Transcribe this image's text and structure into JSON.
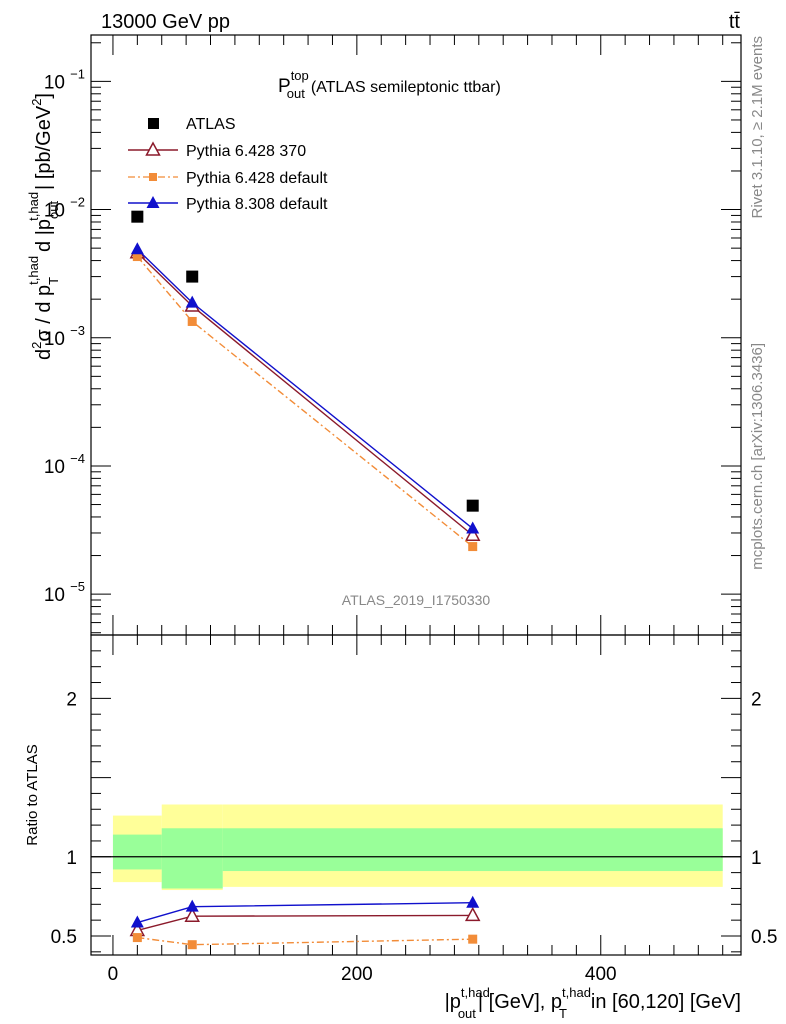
{
  "header": {
    "left": "13000 GeV pp",
    "right": "tt̄"
  },
  "side_texts": {
    "rivet": "Rivet 3.1.10, ≥ 2.1M events",
    "mcplots": "mcplots.cern.ch [arXiv:1306.3436]"
  },
  "watermark": "ATLAS_2019_I1750330",
  "main_title": {
    "base": "P",
    "sup": "top",
    "sub": "out",
    "rest": "(ATLAS semileptonic ttbar)"
  },
  "y_label_top": {
    "d2": "d",
    "two": "2",
    "sigma": "σ / d p",
    "T_sub": "T",
    "thad_sup": "t,had",
    "mid": "d |p",
    "out_sub": "out",
    "thad_sup2": "t,had",
    "unit": "| [pb/GeV",
    "unit_sup": "2",
    "unit_end": "]"
  },
  "y_label_bottom": "Ratio to ATLAS",
  "x_label": {
    "p1": "|p",
    "p1_sup": "t,had",
    "p1_sub": "out",
    "p2": "| [GeV], p",
    "p2_sup": "t,had",
    "p2_sub": "T",
    "p3": "in [60,120] [GeV]"
  },
  "top_ticks": {
    "labels": [
      {
        "value": 0.1,
        "base": "10",
        "exp": "−1"
      },
      {
        "value": 0.01,
        "base": "10",
        "exp": "−2"
      },
      {
        "value": 0.001,
        "base": "10",
        "exp": "−3"
      },
      {
        "value": 0.0001,
        "base": "10",
        "exp": "−4"
      },
      {
        "value": 1e-05,
        "base": "10",
        "exp": "−5"
      }
    ]
  },
  "bottom_ticks": {
    "labels": [
      {
        "value": 2,
        "text": "2"
      },
      {
        "value": 1,
        "text": "1"
      },
      {
        "value": 0.5,
        "text": "0.5"
      }
    ]
  },
  "x_ticks": {
    "labels": [
      {
        "value": 0,
        "text": "0"
      },
      {
        "value": 200,
        "text": "200"
      },
      {
        "value": 400,
        "text": "400"
      }
    ]
  },
  "chart_data": [
    {
      "type": "line",
      "panel": "main",
      "x_scale": "linear",
      "y_scale": "log",
      "xlim": [
        -18,
        515
      ],
      "ylim": [
        4.8e-06,
        0.23
      ],
      "legend_position": "top-left",
      "series": [
        {
          "name": "ATLAS",
          "style": "marker-only",
          "marker": "filled-square",
          "color": "#000000",
          "x": [
            20,
            65,
            295
          ],
          "y": [
            0.0088,
            0.003,
            4.9e-05
          ]
        },
        {
          "name": "Pythia 6.428 370",
          "style": "solid",
          "marker": "open-triangle",
          "color": "#8b1a2b",
          "x": [
            20,
            65,
            295
          ],
          "y": [
            0.0046,
            0.00177,
            2.88e-05
          ]
        },
        {
          "name": "Pythia 6.428 default",
          "style": "dash-dot",
          "marker": "filled-small-square",
          "color": "#f28c38",
          "x": [
            20,
            65,
            295
          ],
          "y": [
            0.0043,
            0.00134,
            2.35e-05
          ]
        },
        {
          "name": "Pythia 8.308 default",
          "style": "solid",
          "marker": "filled-triangle",
          "color": "#1010cc",
          "x": [
            20,
            65,
            295
          ],
          "y": [
            0.0049,
            0.00188,
            3.25e-05
          ]
        }
      ]
    },
    {
      "type": "line",
      "panel": "ratio",
      "x_scale": "linear",
      "y_scale": "linear",
      "xlim": [
        -18,
        515
      ],
      "ylim": [
        0.38,
        2.4
      ],
      "reference_line": 1,
      "bands": [
        {
          "name": "yellow",
          "color": "#ffff99",
          "bins": [
            [
              0,
              40,
              0.84,
              1.26
            ],
            [
              40,
              90,
              0.79,
              1.33
            ],
            [
              90,
              500,
              0.81,
              1.33
            ]
          ]
        },
        {
          "name": "green",
          "color": "#99ff99",
          "bins": [
            [
              0,
              40,
              0.92,
              1.14
            ],
            [
              40,
              90,
              0.8,
              1.18
            ],
            [
              90,
              500,
              0.91,
              1.18
            ]
          ]
        }
      ],
      "series": [
        {
          "name": "Pythia 6.428 370",
          "color": "#8b1a2b",
          "marker": "open-triangle",
          "style": "solid",
          "x": [
            20,
            65,
            295
          ],
          "y": [
            0.535,
            0.625,
            0.63
          ]
        },
        {
          "name": "Pythia 6.428 default",
          "color": "#f28c38",
          "marker": "filled-small-square",
          "style": "dash-dot",
          "x": [
            20,
            65,
            295
          ],
          "y": [
            0.49,
            0.445,
            0.48
          ]
        },
        {
          "name": "Pythia 8.308 default",
          "color": "#1010cc",
          "marker": "filled-triangle",
          "style": "solid",
          "x": [
            20,
            65,
            295
          ],
          "y": [
            0.585,
            0.685,
            0.71
          ]
        }
      ]
    }
  ]
}
